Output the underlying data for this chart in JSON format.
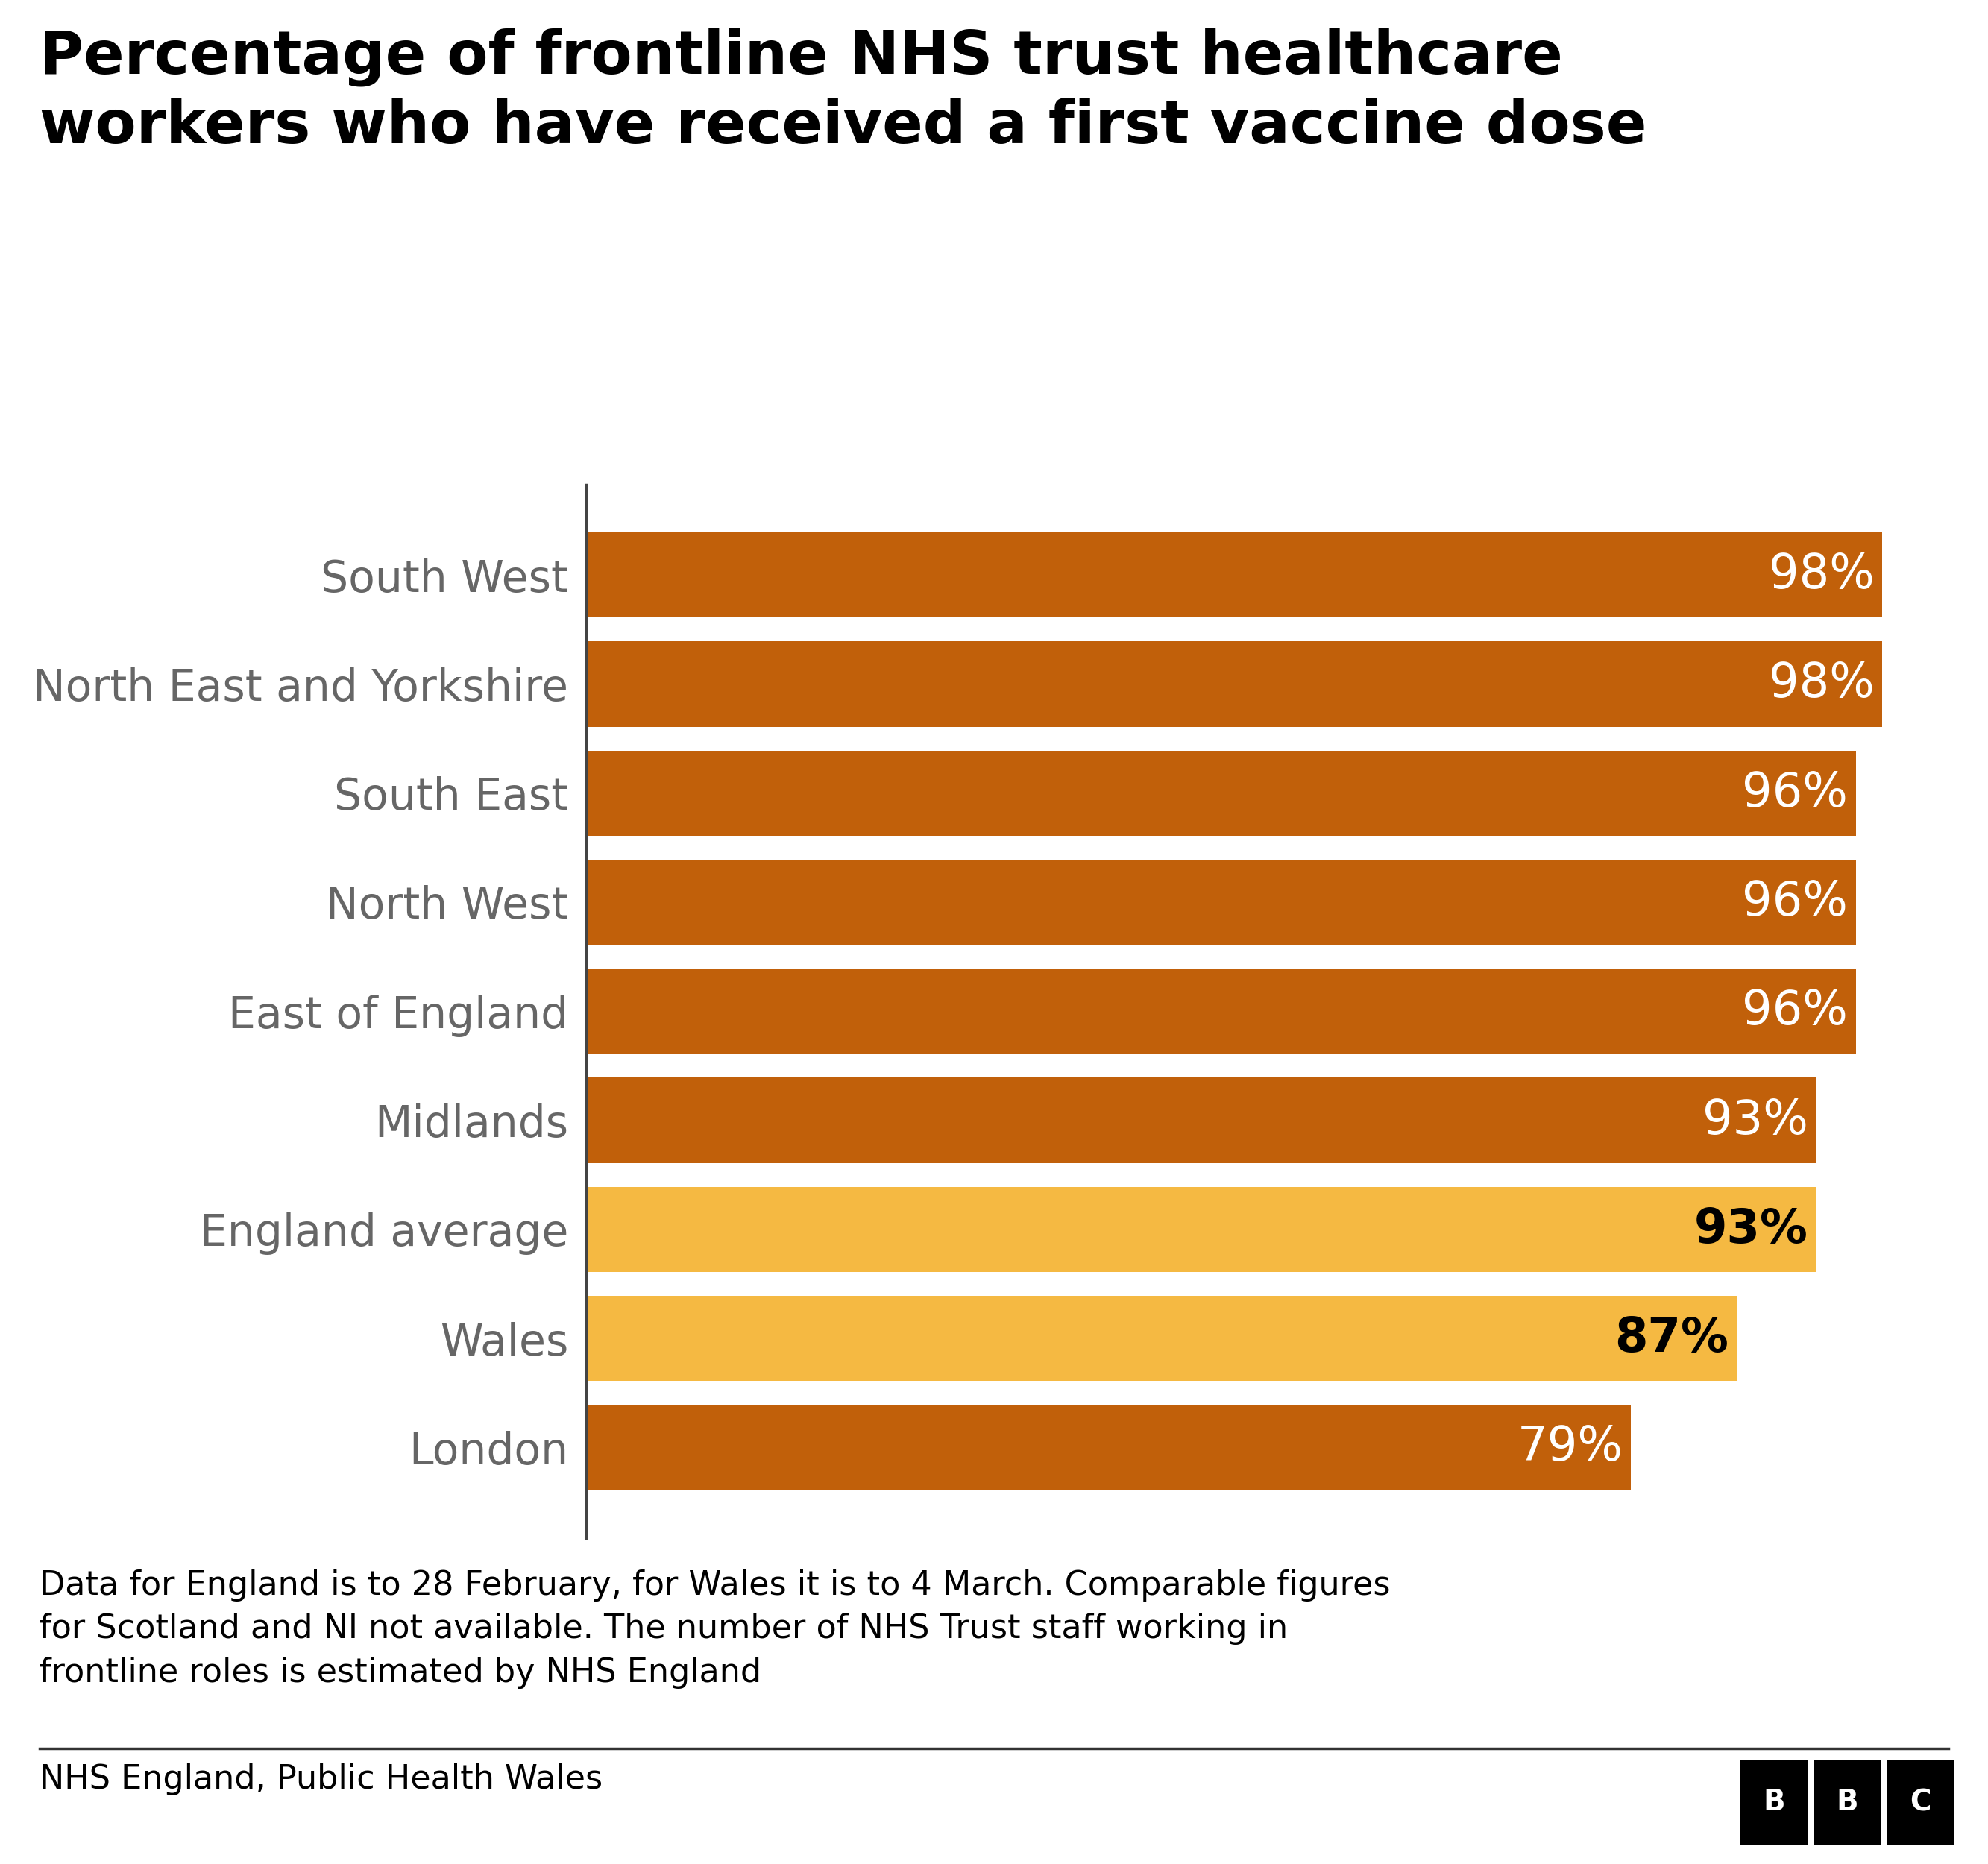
{
  "title_line1": "Percentage of frontline NHS trust healthcare",
  "title_line2": "workers who have received a first vaccine dose",
  "categories": [
    "South West",
    "North East and Yorkshire",
    "South East",
    "North West",
    "East of England",
    "Midlands",
    "England average",
    "Wales",
    "London"
  ],
  "values": [
    98,
    98,
    96,
    96,
    96,
    93,
    93,
    87,
    79
  ],
  "bar_colors": [
    "#c1600a",
    "#c1600a",
    "#c1600a",
    "#c1600a",
    "#c1600a",
    "#c1600a",
    "#f5b942",
    "#f5b942",
    "#c1600a"
  ],
  "label_colors": [
    "#ffffff",
    "#ffffff",
    "#ffffff",
    "#ffffff",
    "#ffffff",
    "#ffffff",
    "#000000",
    "#000000",
    "#ffffff"
  ],
  "label_bold": [
    false,
    false,
    false,
    false,
    false,
    false,
    true,
    true,
    false
  ],
  "footnote": "Data for England is to 28 February, for Wales it is to 4 March. Comparable figures\nfor Scotland and NI not available. The number of NHS Trust staff working in\nfrontline roles is estimated by NHS England",
  "source": "NHS England, Public Health Wales",
  "background_color": "#ffffff",
  "title_fontsize": 58,
  "label_fontsize": 46,
  "category_fontsize": 42,
  "footnote_fontsize": 32,
  "source_fontsize": 32,
  "category_color": "#666666",
  "bar_height": 0.78
}
